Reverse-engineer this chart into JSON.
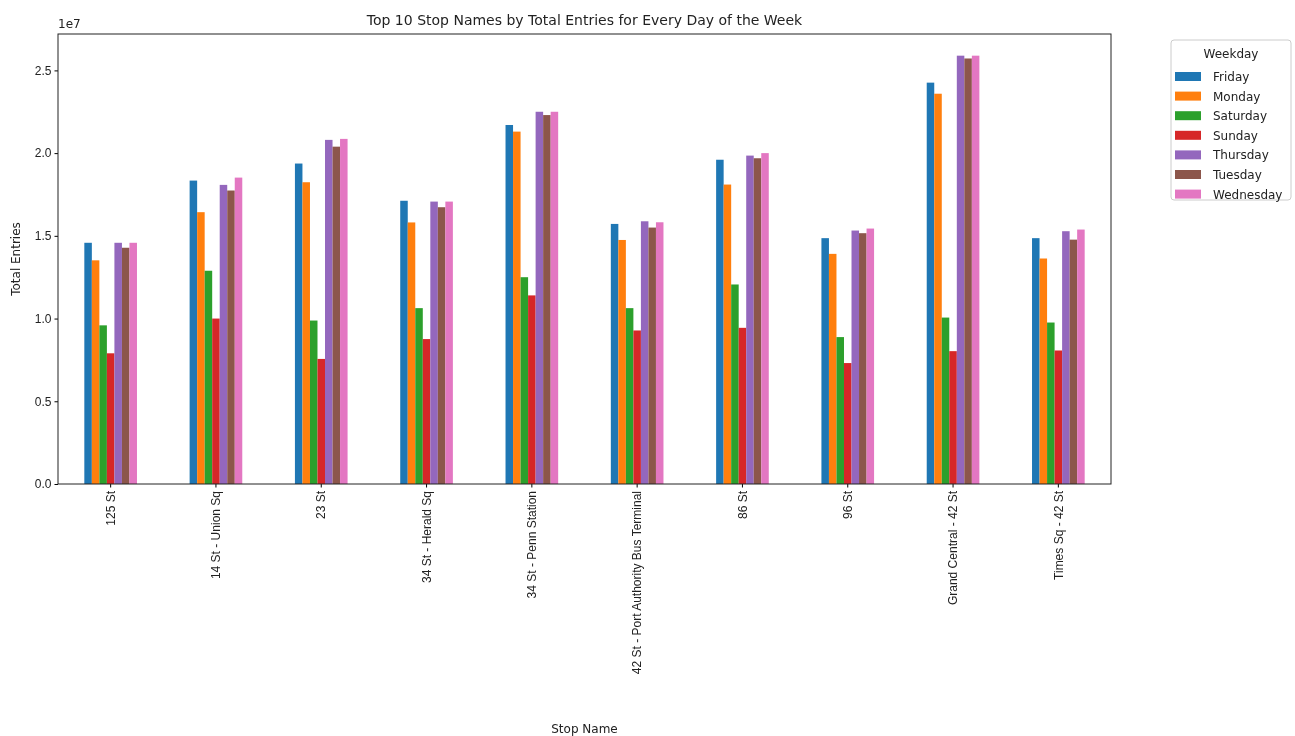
{
  "chart_data": {
    "type": "bar",
    "title": "Top 10 Stop Names by Total Entries for Every Day of the Week",
    "xlabel": "Stop Name",
    "ylabel": "Total Entries",
    "legend_title": "Weekday",
    "legend": "top right",
    "annotations": [
      "1e7"
    ],
    "categories": [
      "125 St",
      "14 St - Union Sq",
      "23 St",
      "34 St - Herald Sq",
      "34 St - Penn Station",
      "42 St - Port Authority Bus Terminal",
      "86 St",
      "96 St",
      "Grand Central - 42 St",
      "Times Sq - 42 St"
    ],
    "ylim": [
      0,
      2.72
    ],
    "yticks": [
      {
        "value": 0,
        "label": "0.0"
      },
      {
        "value": 0.5,
        "label": "0.5"
      },
      {
        "value": 1,
        "label": "1.0"
      },
      {
        "value": 1.5,
        "label": "1.5"
      },
      {
        "value": 2,
        "label": "2.0"
      },
      {
        "value": 2.5,
        "label": "2.5"
      }
    ],
    "series": [
      {
        "name": "Friday",
        "color": "#1f77b4",
        "values": [
          1.458,
          1.834,
          1.937,
          1.712,
          2.17,
          1.572,
          1.96,
          1.486,
          2.426,
          1.486
        ]
      },
      {
        "name": "Monday",
        "color": "#ff7f0e",
        "values": [
          1.352,
          1.643,
          1.824,
          1.581,
          2.13,
          1.475,
          1.81,
          1.391,
          2.359,
          1.363
        ]
      },
      {
        "name": "Saturday",
        "color": "#2ca02c",
        "values": [
          0.959,
          1.289,
          0.988,
          1.063,
          1.25,
          1.063,
          1.206,
          0.888,
          1.006,
          0.976
        ]
      },
      {
        "name": "Sunday",
        "color": "#d62728",
        "values": [
          0.79,
          1.0,
          0.756,
          0.876,
          1.14,
          0.928,
          0.944,
          0.731,
          0.803,
          0.807
        ]
      },
      {
        "name": "Thursday",
        "color": "#9467bd",
        "values": [
          1.458,
          1.808,
          2.08,
          1.707,
          2.25,
          1.588,
          1.985,
          1.532,
          2.589,
          1.528
        ]
      },
      {
        "name": "Tuesday",
        "color": "#8c564b",
        "values": [
          1.428,
          1.774,
          2.039,
          1.673,
          2.23,
          1.55,
          1.969,
          1.516,
          2.572,
          1.477
        ]
      },
      {
        "name": "Wednesday",
        "color": "#e377c2",
        "values": [
          1.458,
          1.852,
          2.086,
          1.707,
          2.25,
          1.582,
          2.0,
          1.544,
          2.589,
          1.538
        ]
      }
    ]
  }
}
